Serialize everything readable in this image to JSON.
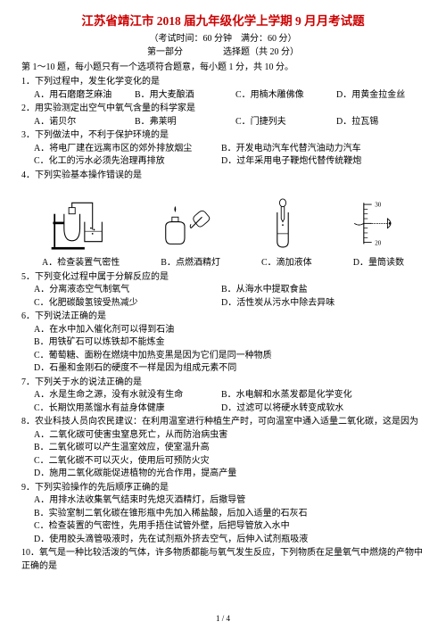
{
  "title": "江苏省靖江市 2018 届九年级化学上学期 9 月月考试题",
  "title_color": "#cc0000",
  "subtitle": "（考试时间：60 分钟　满分：60 分）",
  "section_label_left": "第一部分",
  "section_label_right": "选择题（共 20 分）",
  "instruction": "第 1～10 题，每小题只有一个选项符合题意，每小题 1 分，共 10 分。",
  "page_number": "1 / 4",
  "questions": [
    {
      "num": "1",
      "stem": "下列过程中，发生化学变化的是",
      "options": [
        {
          "k": "A",
          "t": "用石磨磨芝麻油"
        },
        {
          "k": "B",
          "t": "用大麦酿酒"
        },
        {
          "k": "C",
          "t": "用楠木雕佛像"
        },
        {
          "k": "D",
          "t": "用黄金拉金丝"
        }
      ],
      "layout": "inline4"
    },
    {
      "num": "2",
      "stem": "用实验测定出空气中氧气含量的科学家是",
      "options": [
        {
          "k": "A",
          "t": "诺贝尔"
        },
        {
          "k": "B",
          "t": "弗莱明"
        },
        {
          "k": "C",
          "t": "门捷列夫"
        },
        {
          "k": "D",
          "t": "拉瓦锡"
        }
      ],
      "layout": "inline4"
    },
    {
      "num": "3",
      "stem": "下列做法中，不利于保护环境的是",
      "options": [
        {
          "k": "A",
          "t": "将电厂建在远离市区的郊外排放烟尘"
        },
        {
          "k": "B",
          "t": "开发电动汽车代替汽油动力汽车"
        },
        {
          "k": "C",
          "t": "化工的污水必须先治理再排放"
        },
        {
          "k": "D",
          "t": "过年采用电子鞭炮代替传统鞭炮"
        }
      ],
      "layout": "two-col"
    },
    {
      "num": "4",
      "stem": "下列实验基本操作错误的是",
      "image_labels": [
        {
          "k": "A",
          "t": "检查装置气密性"
        },
        {
          "k": "B",
          "t": "点燃酒精灯"
        },
        {
          "k": "C",
          "t": "滴加液体"
        },
        {
          "k": "D",
          "t": "量筒读数"
        }
      ],
      "layout": "images"
    },
    {
      "num": "5",
      "stem": "下列变化过程中属于分解反应的是",
      "options": [
        {
          "k": "A",
          "t": "分离液态空气制氧气"
        },
        {
          "k": "B",
          "t": "从海水中提取食盐"
        },
        {
          "k": "C",
          "t": "化肥碳酸氢铵受热减少"
        },
        {
          "k": "D",
          "t": "活性炭从污水中除去异味"
        }
      ],
      "layout": "two-col"
    },
    {
      "num": "6",
      "stem": "下列说法正确的是",
      "options": [
        {
          "k": "A",
          "t": "在水中加入催化剂可以得到石油"
        },
        {
          "k": "B",
          "t": "用铁矿石可以炼铁却不能炼金"
        },
        {
          "k": "C",
          "t": "葡萄糖、面粉在燃烧中加热变黑是因为它们是同一种物质"
        },
        {
          "k": "D",
          "t": "石墨和金刚石的硬度不一样是因为组成元素不同"
        }
      ],
      "layout": "single"
    },
    {
      "num": "7",
      "stem": "下列关于水的说法正确的是",
      "options": [
        {
          "k": "A",
          "t": "水是生命之源，没有水就没有生命"
        },
        {
          "k": "B",
          "t": "水电解和水蒸发都是化学变化"
        },
        {
          "k": "C",
          "t": "长期饮用蒸馏水有益身体健康"
        },
        {
          "k": "D",
          "t": "过滤可以将硬水转变成软水"
        }
      ],
      "layout": "two-col"
    },
    {
      "num": "8",
      "stem": "农业科技人员向农民建议：在利用温室进行种植生产时，可向温室中通入适量二氧化碳，这是因为",
      "options": [
        {
          "k": "A",
          "t": "二氧化碳可使害虫窒息死亡，从而防治病虫害"
        },
        {
          "k": "B",
          "t": "二氧化碳可以产生温室效应，使室温升高"
        },
        {
          "k": "C",
          "t": "二氧化碳不可以灭火，使用后可预防火灾"
        },
        {
          "k": "D",
          "t": "施用二氧化碳能促进植物的光合作用，提高产量"
        }
      ],
      "layout": "single"
    },
    {
      "num": "9",
      "stem": "下列实验操作的先后顺序正确的是",
      "options": [
        {
          "k": "A",
          "t": "用排水法收集氧气结束时先熄灭酒精灯，后撤导管"
        },
        {
          "k": "B",
          "t": "实验室制二氧化碳在锥形瓶中先加入稀盐酸，后加入适量的石灰石"
        },
        {
          "k": "C",
          "t": "检查装置的气密性，先用手捂住试管外壁，后把导管放入水中"
        },
        {
          "k": "D",
          "t": "使用胶头滴管吸液时，先在试剂瓶外挤去空气，后伸入试剂瓶吸液"
        }
      ],
      "layout": "single"
    },
    {
      "num": "10",
      "stem": "氧气是一种比较活泼的气体，许多物质都能与氧气发生反应，下列物质在足量氧气中燃烧的产物中正确的是",
      "options": [],
      "layout": "none"
    }
  ]
}
